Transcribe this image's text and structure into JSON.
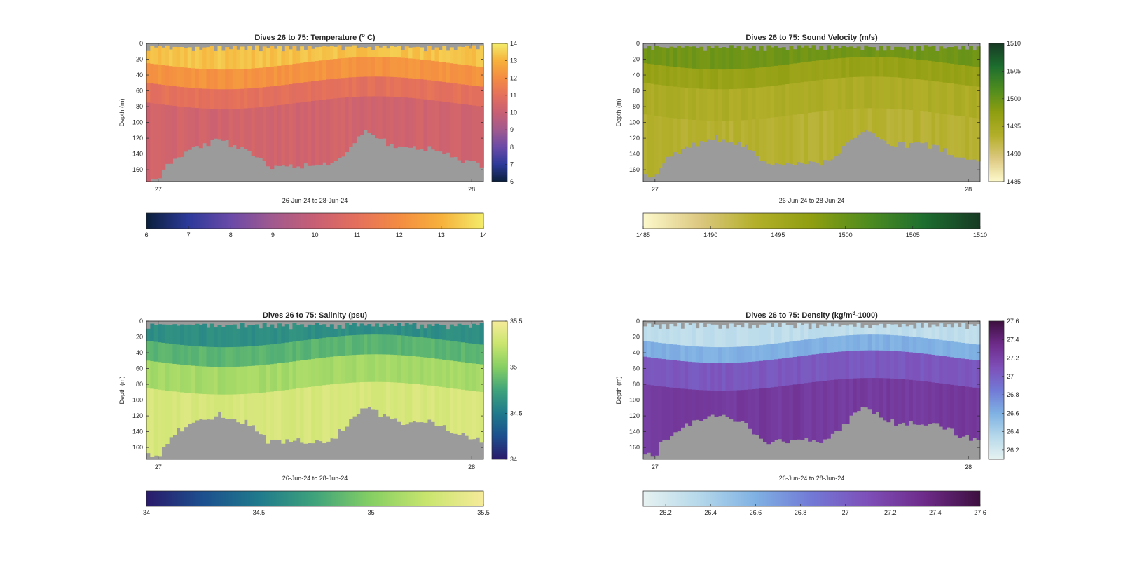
{
  "chart_data": [
    {
      "type": "heatmap",
      "title": "Dives 26 to 75: Temperature (ºC)",
      "title_main": "Dives 26 to 75: Temperature (",
      "title_sup": "o",
      "title_end": " C)",
      "xlabel": "26-Jun-24 to 28-Jun-24",
      "ylabel": "Depth (m)",
      "xticks": [
        "27",
        "28"
      ],
      "yticks": [
        0,
        20,
        40,
        60,
        80,
        100,
        120,
        140,
        160
      ],
      "ylim": [
        0,
        175
      ],
      "colorbar_range": [
        6,
        14
      ],
      "colorbar_right_ticks": [
        6,
        7,
        8,
        9,
        10,
        11,
        12,
        13,
        14
      ],
      "colorbar_bottom_ticks": [
        6,
        7,
        8,
        9,
        10,
        11,
        12,
        13,
        14
      ],
      "colormap": [
        "#0b1f3b",
        "#2d3a9a",
        "#6a4aa8",
        "#a15a8e",
        "#c85f74",
        "#e4705c",
        "#f48c42",
        "#f6b13b",
        "#f3ec6a"
      ],
      "bottom_profile": "temp",
      "layers": [
        {
          "from_depth": 0,
          "to_depth": 25,
          "value": 13.3
        },
        {
          "from_depth": 25,
          "to_depth": 50,
          "value": 12.2
        },
        {
          "from_depth": 50,
          "to_depth": 75,
          "value": 11.0
        },
        {
          "from_depth": 75,
          "to_depth": 175,
          "value": 10.3
        }
      ]
    },
    {
      "type": "heatmap",
      "title": "Dives 26 to 75: Sound Velocity (m/s)",
      "title_main": "Dives 26 to 75: Sound Velocity (m/s)",
      "title_sup": "",
      "title_end": "",
      "xlabel": "26-Jun-24 to 28-Jun-24",
      "ylabel": "Depth (m)",
      "xticks": [
        "27",
        "28"
      ],
      "yticks": [
        0,
        20,
        40,
        60,
        80,
        100,
        120,
        140,
        160
      ],
      "ylim": [
        0,
        175
      ],
      "colorbar_range": [
        1485,
        1510
      ],
      "colorbar_right_ticks": [
        1485,
        1490,
        1495,
        1500,
        1505,
        1510
      ],
      "colorbar_bottom_ticks": [
        1485,
        1490,
        1495,
        1500,
        1505,
        1510
      ],
      "colormap": [
        "#fdf9cc",
        "#dcc880",
        "#b3af2a",
        "#8f9e10",
        "#4f8c1f",
        "#1d6e2f",
        "#173a24"
      ],
      "bottom_profile": "dive",
      "layers": [
        {
          "from_depth": 0,
          "to_depth": 25,
          "value": 1499.5
        },
        {
          "from_depth": 25,
          "to_depth": 50,
          "value": 1496.5
        },
        {
          "from_depth": 50,
          "to_depth": 90,
          "value": 1494.0
        },
        {
          "from_depth": 90,
          "to_depth": 175,
          "value": 1493.0
        }
      ]
    },
    {
      "type": "heatmap",
      "title": "Dives 26 to 75: Salinity (psu)",
      "title_main": "Dives 26 to 75: Salinity (psu)",
      "title_sup": "",
      "title_end": "",
      "xlabel": "26-Jun-24 to 28-Jun-24",
      "ylabel": "Depth (m)",
      "xticks": [
        "27",
        "28"
      ],
      "yticks": [
        0,
        20,
        40,
        60,
        80,
        100,
        120,
        140,
        160
      ],
      "ylim": [
        0,
        175
      ],
      "colorbar_range": [
        34,
        35.5
      ],
      "colorbar_right_ticks": [
        34,
        34.5,
        35,
        35.5
      ],
      "colorbar_bottom_ticks": [
        34,
        34.5,
        35,
        35.5
      ],
      "colormap": [
        "#2a1a6b",
        "#1c4f8e",
        "#1f7a8c",
        "#3fa37b",
        "#86cf63",
        "#c9e56e",
        "#f6eb9a"
      ],
      "bottom_profile": "dive",
      "layers": [
        {
          "from_depth": 0,
          "to_depth": 25,
          "value": 34.62
        },
        {
          "from_depth": 25,
          "to_depth": 50,
          "value": 34.85
        },
        {
          "from_depth": 50,
          "to_depth": 85,
          "value": 35.12
        },
        {
          "from_depth": 85,
          "to_depth": 175,
          "value": 35.33
        }
      ]
    },
    {
      "type": "heatmap",
      "title": "Dives 26 to 75: Density (kg/m³-1000)",
      "title_main": "Dives 26 to 75: Density (kg/m",
      "title_sup": "3",
      "title_end": "-1000)",
      "xlabel": "26-Jun-24 to 28-Jun-24",
      "ylabel": "Depth (m)",
      "xticks": [
        "27",
        "28"
      ],
      "yticks": [
        0,
        20,
        40,
        60,
        80,
        100,
        120,
        140,
        160
      ],
      "ylim": [
        0,
        175
      ],
      "colorbar_range": [
        26.1,
        27.6
      ],
      "colorbar_right_ticks": [
        26.2,
        26.4,
        26.6,
        26.8,
        27,
        27.2,
        27.4,
        27.6
      ],
      "colorbar_bottom_ticks": [
        26.2,
        26.4,
        26.6,
        26.8,
        27,
        27.2,
        27.4,
        27.6
      ],
      "colormap": [
        "#e6f2f1",
        "#b5d8ea",
        "#7fb1e3",
        "#7279d6",
        "#7e4fb8",
        "#6e2b8a",
        "#3d0f3f"
      ],
      "bottom_profile": "dive",
      "layers": [
        {
          "from_depth": 0,
          "to_depth": 25,
          "value": 26.3
        },
        {
          "from_depth": 25,
          "to_depth": 45,
          "value": 26.6
        },
        {
          "from_depth": 45,
          "to_depth": 80,
          "value": 27.05
        },
        {
          "from_depth": 80,
          "to_depth": 175,
          "value": 27.25
        }
      ]
    }
  ]
}
